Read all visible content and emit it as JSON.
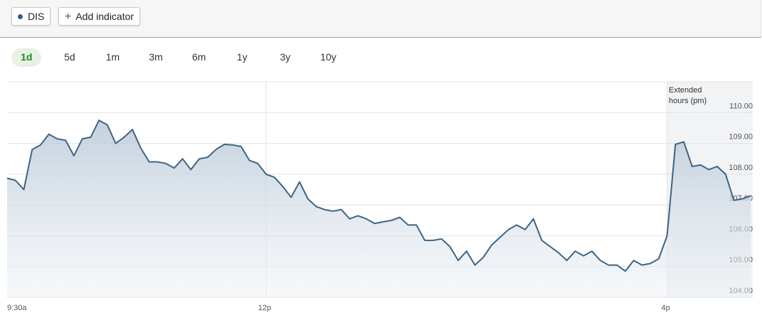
{
  "toolbar": {
    "symbol": "DIS",
    "add_indicator": "Add indicator"
  },
  "ranges": [
    "1d",
    "5d",
    "1m",
    "3m",
    "6m",
    "1y",
    "3y",
    "10y"
  ],
  "active_range": 0,
  "chart_data": {
    "type": "area",
    "annotation": "Extended hours (pm)",
    "color": "#3d6483",
    "categories": [
      "9:30a",
      null,
      null,
      null,
      null,
      null,
      null,
      null,
      null,
      null,
      null,
      null,
      null,
      null,
      null,
      null,
      null,
      null,
      null,
      null,
      null,
      null,
      null,
      null,
      null,
      null,
      null,
      null,
      null,
      null,
      null,
      "12p",
      null,
      null,
      null,
      null,
      null,
      null,
      null,
      null,
      null,
      null,
      null,
      null,
      null,
      null,
      null,
      null,
      null,
      null,
      null,
      null,
      null,
      null,
      null,
      null,
      null,
      null,
      null,
      null,
      null,
      null,
      null,
      null,
      null,
      null,
      null,
      null,
      null,
      null,
      null,
      null,
      null,
      null,
      null,
      null,
      null,
      null,
      null,
      "4p",
      null,
      null,
      null,
      null,
      null,
      null,
      null,
      null,
      null,
      null
    ],
    "values": [
      107.87,
      107.8,
      107.5,
      108.8,
      108.95,
      109.3,
      109.15,
      109.1,
      108.6,
      109.15,
      109.2,
      109.75,
      109.6,
      109.0,
      109.2,
      109.45,
      108.85,
      108.4,
      108.4,
      108.35,
      108.2,
      108.5,
      108.15,
      108.5,
      108.55,
      108.8,
      108.97,
      108.95,
      108.9,
      108.45,
      108.35,
      108.0,
      107.9,
      107.6,
      107.25,
      107.75,
      107.2,
      106.95,
      106.85,
      106.8,
      106.85,
      106.55,
      106.65,
      106.55,
      106.4,
      106.45,
      106.5,
      106.6,
      106.35,
      106.35,
      105.85,
      105.85,
      105.9,
      105.65,
      105.2,
      105.5,
      105.05,
      105.3,
      105.7,
      105.95,
      106.2,
      106.35,
      106.2,
      106.55,
      105.85,
      105.65,
      105.45,
      105.2,
      105.5,
      105.35,
      105.5,
      105.2,
      105.05,
      105.05,
      104.85,
      105.2,
      105.05,
      105.1,
      105.25,
      106.0,
      108.97,
      109.05,
      108.25,
      108.3,
      108.15,
      108.25,
      108.0,
      107.15,
      107.2,
      107.3
    ],
    "ylim": [
      104,
      111
    ],
    "yticks": [
      {
        "value": 104,
        "label": "104.00"
      },
      {
        "value": 105,
        "label": "105.00"
      },
      {
        "value": 106,
        "label": "106.00"
      },
      {
        "value": 107,
        "label": "107.00"
      },
      {
        "value": 108,
        "label": "108.00"
      },
      {
        "value": 109,
        "label": "109.00"
      },
      {
        "value": 110,
        "label": "110.00"
      }
    ],
    "grid": true
  }
}
